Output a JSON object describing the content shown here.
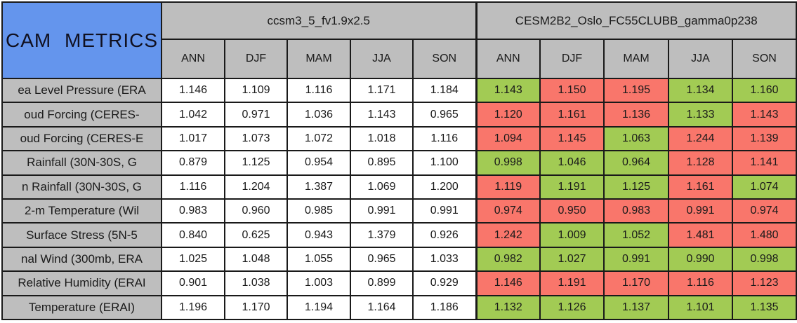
{
  "colors": {
    "corner_bg": "#6495ED",
    "header_bg": "#BEBEBE",
    "better_bg": "#A2CB54",
    "worse_bg": "#F9766B",
    "neutral_bg": "#FFFFFF",
    "border": "#1A1A1A"
  },
  "chart_data": {
    "type": "table",
    "title": "CAM METRICS",
    "column_groups": [
      "ccsm3_5_fv1.9x2.5",
      "CESM2B2_Oslo_FC55CLUBB_gamma0p238"
    ],
    "seasons": [
      "ANN",
      "DJF",
      "MAM",
      "JJA",
      "SON"
    ],
    "legend_note_colors": {
      "better": "green",
      "worse": "red"
    },
    "rows": [
      {
        "label": "ea Level Pressure (ERA",
        "model1": [
          "1.146",
          "1.109",
          "1.116",
          "1.171",
          "1.184"
        ],
        "model2": [
          "1.143",
          "1.150",
          "1.195",
          "1.134",
          "1.160"
        ],
        "model2_status": [
          "better",
          "worse",
          "worse",
          "better",
          "better"
        ]
      },
      {
        "label": "oud Forcing (CERES-",
        "model1": [
          "1.042",
          "0.971",
          "1.036",
          "1.143",
          "0.965"
        ],
        "model2": [
          "1.120",
          "1.161",
          "1.136",
          "1.133",
          "1.143"
        ],
        "model2_status": [
          "worse",
          "worse",
          "worse",
          "better",
          "worse"
        ]
      },
      {
        "label": "oud Forcing (CERES-E",
        "model1": [
          "1.017",
          "1.073",
          "1.072",
          "1.018",
          "1.116"
        ],
        "model2": [
          "1.094",
          "1.145",
          "1.063",
          "1.244",
          "1.139"
        ],
        "model2_status": [
          "worse",
          "worse",
          "better",
          "worse",
          "worse"
        ]
      },
      {
        "label": "Rainfall (30N-30S, G",
        "model1": [
          "0.879",
          "1.125",
          "0.954",
          "0.895",
          "1.100"
        ],
        "model2": [
          "0.998",
          "1.046",
          "0.964",
          "1.128",
          "1.141"
        ],
        "model2_status": [
          "better",
          "better",
          "better",
          "worse",
          "worse"
        ]
      },
      {
        "label": "n Rainfall (30N-30S, G",
        "model1": [
          "1.116",
          "1.204",
          "1.387",
          "1.069",
          "1.200"
        ],
        "model2": [
          "1.119",
          "1.191",
          "1.125",
          "1.161",
          "1.074"
        ],
        "model2_status": [
          "worse",
          "better",
          "better",
          "worse",
          "better"
        ]
      },
      {
        "label": "2-m Temperature (Wil",
        "model1": [
          "0.983",
          "0.960",
          "0.985",
          "0.991",
          "0.991"
        ],
        "model2": [
          "0.974",
          "0.950",
          "0.983",
          "0.991",
          "0.974"
        ],
        "model2_status": [
          "worse",
          "worse",
          "worse",
          "worse",
          "worse"
        ]
      },
      {
        "label": "Surface Stress (5N-5",
        "model1": [
          "0.840",
          "0.625",
          "0.943",
          "1.379",
          "0.926"
        ],
        "model2": [
          "1.242",
          "1.009",
          "1.052",
          "1.481",
          "1.480"
        ],
        "model2_status": [
          "worse",
          "better",
          "better",
          "worse",
          "worse"
        ]
      },
      {
        "label": "nal Wind (300mb, ERA",
        "model1": [
          "1.025",
          "1.048",
          "1.055",
          "0.965",
          "1.033"
        ],
        "model2": [
          "0.982",
          "1.027",
          "0.991",
          "0.990",
          "0.998"
        ],
        "model2_status": [
          "better",
          "better",
          "better",
          "better",
          "better"
        ]
      },
      {
        "label": "Relative Humidity (ERAI",
        "model1": [
          "0.901",
          "1.038",
          "1.003",
          "0.899",
          "0.929"
        ],
        "model2": [
          "1.146",
          "1.191",
          "1.170",
          "1.116",
          "1.123"
        ],
        "model2_status": [
          "worse",
          "worse",
          "worse",
          "worse",
          "worse"
        ]
      },
      {
        "label": "Temperature (ERAI)",
        "model1": [
          "1.196",
          "1.170",
          "1.194",
          "1.164",
          "1.186"
        ],
        "model2": [
          "1.132",
          "1.126",
          "1.137",
          "1.101",
          "1.135"
        ],
        "model2_status": [
          "better",
          "better",
          "better",
          "better",
          "better"
        ]
      }
    ]
  }
}
